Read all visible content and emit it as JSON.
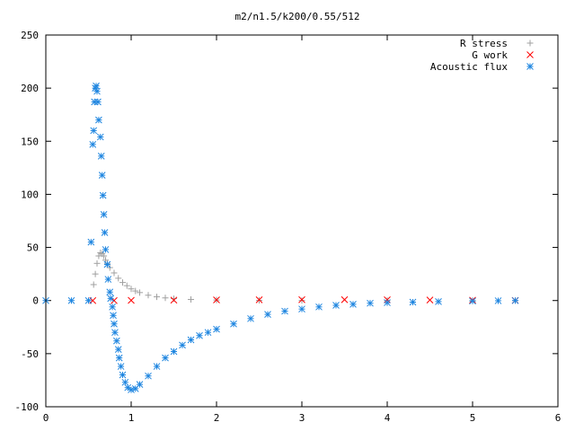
{
  "chart_data": {
    "type": "scatter",
    "title": "m2/n1.5/k200/0.55/512",
    "xlabel": "",
    "ylabel": "",
    "xlim": [
      0,
      6
    ],
    "ylim": [
      -100,
      250
    ],
    "xticks": [
      0,
      1,
      2,
      3,
      4,
      5,
      6
    ],
    "yticks": [
      -100,
      -50,
      0,
      50,
      100,
      150,
      200,
      250
    ],
    "grid": false,
    "legend_position": "top-right",
    "series": [
      {
        "name": "R stress",
        "marker": "plus",
        "color": "#a0a0a0",
        "points": [
          [
            0.56,
            15
          ],
          [
            0.58,
            25
          ],
          [
            0.6,
            35
          ],
          [
            0.62,
            42
          ],
          [
            0.64,
            45
          ],
          [
            0.66,
            44
          ],
          [
            0.68,
            42
          ],
          [
            0.7,
            38
          ],
          [
            0.72,
            35
          ],
          [
            0.75,
            31
          ],
          [
            0.8,
            26
          ],
          [
            0.85,
            21
          ],
          [
            0.9,
            17
          ],
          [
            0.95,
            14
          ],
          [
            1.0,
            11
          ],
          [
            1.05,
            9
          ],
          [
            1.1,
            7.5
          ],
          [
            1.2,
            5
          ],
          [
            1.3,
            3.5
          ],
          [
            1.4,
            2.5
          ],
          [
            1.5,
            1.8
          ],
          [
            1.7,
            1
          ],
          [
            2.0,
            0.5
          ],
          [
            2.5,
            0.2
          ],
          [
            3.0,
            0.1
          ],
          [
            4.0,
            0.05
          ],
          [
            5.0,
            0.02
          ],
          [
            5.5,
            0
          ]
        ]
      },
      {
        "name": "G work",
        "marker": "cross",
        "color": "#ff0000",
        "points": [
          [
            0.55,
            0
          ],
          [
            0.8,
            0
          ],
          [
            1.0,
            0.2
          ],
          [
            1.5,
            0.4
          ],
          [
            2.0,
            0.6
          ],
          [
            2.5,
            0.7
          ],
          [
            3.0,
            0.8
          ],
          [
            3.5,
            0.8
          ],
          [
            4.0,
            0.7
          ],
          [
            4.5,
            0.5
          ],
          [
            5.0,
            0.3
          ],
          [
            5.5,
            0.1
          ]
        ]
      },
      {
        "name": "Acoustic flux",
        "marker": "star",
        "color": "#1f86e0",
        "points": [
          [
            0.0,
            0
          ],
          [
            0.3,
            0
          ],
          [
            0.5,
            0
          ],
          [
            0.53,
            55
          ],
          [
            0.55,
            147
          ],
          [
            0.56,
            160
          ],
          [
            0.57,
            187
          ],
          [
            0.58,
            200
          ],
          [
            0.59,
            202
          ],
          [
            0.6,
            197
          ],
          [
            0.61,
            187
          ],
          [
            0.62,
            170
          ],
          [
            0.64,
            154
          ],
          [
            0.65,
            136
          ],
          [
            0.66,
            118
          ],
          [
            0.67,
            99
          ],
          [
            0.68,
            81
          ],
          [
            0.69,
            64
          ],
          [
            0.7,
            48
          ],
          [
            0.72,
            34
          ],
          [
            0.73,
            20
          ],
          [
            0.75,
            8
          ],
          [
            0.76,
            2
          ],
          [
            0.78,
            -6
          ],
          [
            0.79,
            -14
          ],
          [
            0.8,
            -22
          ],
          [
            0.81,
            -30
          ],
          [
            0.83,
            -38
          ],
          [
            0.85,
            -46
          ],
          [
            0.86,
            -54
          ],
          [
            0.88,
            -62
          ],
          [
            0.9,
            -70
          ],
          [
            0.93,
            -77
          ],
          [
            0.96,
            -82
          ],
          [
            1.0,
            -84
          ],
          [
            1.05,
            -83
          ],
          [
            1.1,
            -79
          ],
          [
            1.2,
            -71
          ],
          [
            1.3,
            -62
          ],
          [
            1.4,
            -54
          ],
          [
            1.5,
            -48
          ],
          [
            1.6,
            -42
          ],
          [
            1.7,
            -37
          ],
          [
            1.8,
            -33
          ],
          [
            1.9,
            -30
          ],
          [
            2.0,
            -27
          ],
          [
            2.2,
            -22
          ],
          [
            2.4,
            -17
          ],
          [
            2.6,
            -13
          ],
          [
            2.8,
            -10
          ],
          [
            3.0,
            -8
          ],
          [
            3.2,
            -6
          ],
          [
            3.4,
            -4.5
          ],
          [
            3.6,
            -3.5
          ],
          [
            3.8,
            -2.5
          ],
          [
            4.0,
            -2
          ],
          [
            4.3,
            -1.5
          ],
          [
            4.6,
            -1
          ],
          [
            5.0,
            -0.5
          ],
          [
            5.3,
            -0.2
          ],
          [
            5.5,
            0
          ]
        ]
      }
    ]
  }
}
